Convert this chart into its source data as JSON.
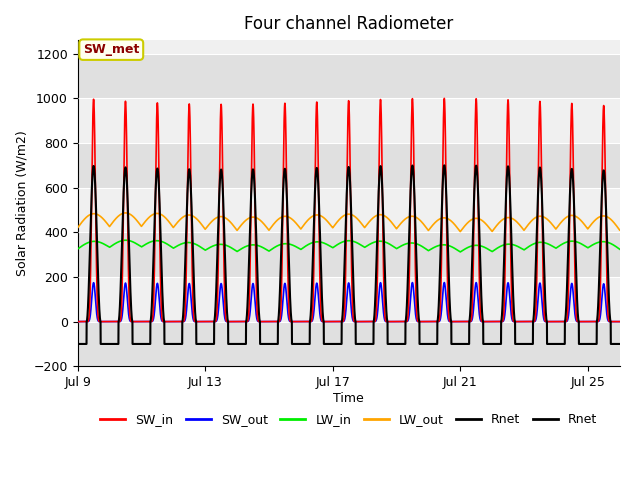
{
  "title": "Four channel Radiometer",
  "xlabel": "Time",
  "ylabel": "Solar Radiation (W/m2)",
  "ylim": [
    -200,
    1260
  ],
  "yticks": [
    -200,
    0,
    200,
    400,
    600,
    800,
    1000,
    1200
  ],
  "xtick_labels": [
    "Jul 9",
    "Jul 13",
    "Jul 17",
    "Jul 21",
    "Jul 25"
  ],
  "xtick_positions": [
    0,
    4,
    8,
    12,
    16
  ],
  "num_days": 17,
  "points_per_day": 500,
  "SW_in_peak": 1000,
  "SW_out_peak": 175,
  "LW_in_base": 325,
  "LW_in_amp": 30,
  "LW_out_base": 420,
  "LW_out_amp": 60,
  "Rnet_day_peak": 700,
  "Rnet_night": -100,
  "colors": {
    "SW_in": "#ff0000",
    "SW_out": "#0000ff",
    "LW_in": "#00ee00",
    "LW_out": "#ffa500",
    "Rnet": "#000000",
    "Rnet2": "#000000"
  },
  "linewidths": {
    "SW_in": 1.2,
    "SW_out": 1.2,
    "LW_in": 1.2,
    "LW_out": 1.2,
    "Rnet": 1.5,
    "Rnet2": 1.5
  },
  "annotation_text": "SW_met",
  "annotation_color": "#8b0000",
  "annotation_bg": "#fffff0",
  "annotation_edge": "#cccc00",
  "bg_color_light": "#f0f0f0",
  "bg_color_dark": "#e0e0e0",
  "grid_color": "#ffffff"
}
